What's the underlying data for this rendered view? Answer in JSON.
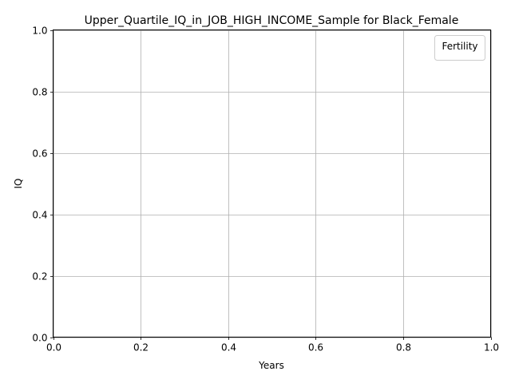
{
  "chart_data": {
    "type": "line",
    "title": "Upper_Quartile_IQ_in_JOB_HIGH_INCOME_Sample for Black_Female",
    "xlabel": "Years",
    "ylabel": "IQ",
    "xlim": [
      0.0,
      1.0
    ],
    "ylim": [
      0.0,
      1.0
    ],
    "xticks": [
      "0.0",
      "0.2",
      "0.4",
      "0.6",
      "0.8",
      "1.0"
    ],
    "yticks": [
      "0.0",
      "0.2",
      "0.4",
      "0.6",
      "0.8",
      "1.0"
    ],
    "grid": true,
    "legend": {
      "title": "Fertility",
      "placement": "top-right",
      "entries": []
    },
    "series": []
  }
}
